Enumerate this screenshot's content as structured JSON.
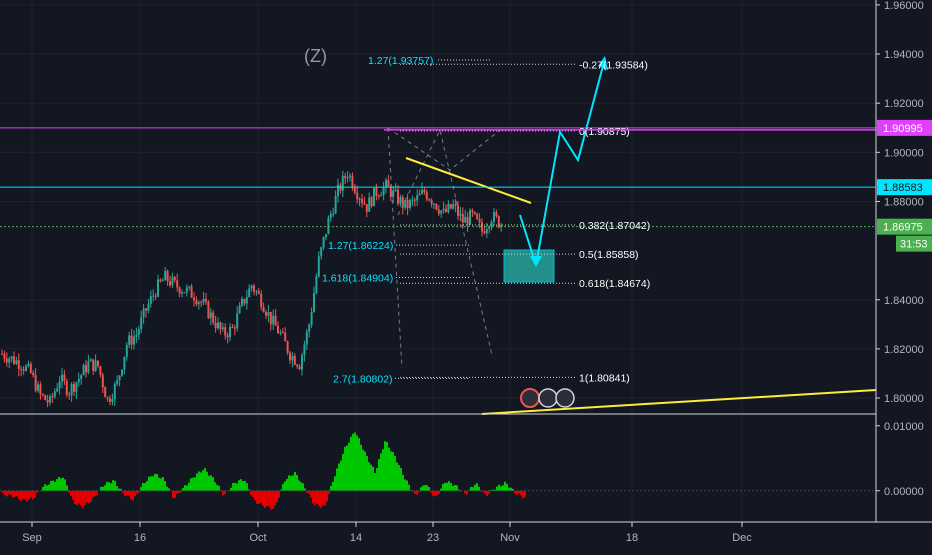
{
  "symbol_mark": "(Z)",
  "colors": {
    "background": "#131722",
    "candle_up": "#26a69a",
    "candle_down": "#ef5350",
    "cyan": "#00e5ff",
    "magenta": "#e040fb",
    "yellow": "#ffeb3b",
    "green_level": "#4caf50",
    "osc_up": "#00c800",
    "osc_down": "#e00000",
    "teal_box": "#26a69a"
  },
  "chart_data": {
    "type": "candlestick",
    "x_ticks": [
      "Sep",
      "16",
      "Oct",
      "14",
      "23",
      "Nov",
      "18",
      "Dec"
    ],
    "y_ticks": [
      "1.96000",
      "1.94000",
      "1.92000",
      "1.90000",
      "1.88000",
      "1.84000",
      "1.82000",
      "1.80000"
    ],
    "ylim": [
      1.7935,
      1.962
    ],
    "price_path": [
      [
        0,
        1.818
      ],
      [
        2,
        1.814
      ],
      [
        3,
        1.81
      ],
      [
        4,
        1.801
      ],
      [
        5,
        1.798
      ],
      [
        6,
        1.808
      ],
      [
        7,
        1.803
      ],
      [
        8,
        1.808
      ],
      [
        9,
        1.814
      ],
      [
        10,
        1.813
      ],
      [
        11,
        1.799
      ],
      [
        12,
        1.806
      ],
      [
        13,
        1.822
      ],
      [
        14,
        1.826
      ],
      [
        15,
        1.836
      ],
      [
        16,
        1.844
      ],
      [
        17,
        1.849
      ],
      [
        18,
        1.846
      ],
      [
        19,
        1.844
      ],
      [
        20,
        1.842
      ],
      [
        21,
        1.838
      ],
      [
        22,
        1.832
      ],
      [
        23,
        1.826
      ],
      [
        24,
        1.828
      ],
      [
        25,
        1.838
      ],
      [
        26,
        1.846
      ],
      [
        27,
        1.84
      ],
      [
        28,
        1.832
      ],
      [
        29,
        1.826
      ],
      [
        30,
        1.818
      ],
      [
        31,
        1.814
      ],
      [
        32,
        1.83
      ],
      [
        33,
        1.856
      ],
      [
        34,
        1.872
      ],
      [
        35,
        1.884
      ],
      [
        36,
        1.892
      ],
      [
        37,
        1.884
      ],
      [
        38,
        1.878
      ],
      [
        39,
        1.884
      ],
      [
        40,
        1.886
      ],
      [
        41,
        1.882
      ],
      [
        42,
        1.878
      ],
      [
        43,
        1.88
      ],
      [
        44,
        1.884
      ],
      [
        45,
        1.88
      ],
      [
        46,
        1.875
      ],
      [
        47,
        1.878
      ],
      [
        48,
        1.872
      ],
      [
        49,
        1.874
      ],
      [
        50,
        1.868
      ],
      [
        51,
        1.874
      ],
      [
        52,
        1.871
      ]
    ],
    "price_day_range": [
      0,
      52
    ],
    "horizontal_levels": [
      {
        "price": 1.90995,
        "label": "1.90995",
        "color": "#e040fb",
        "style": "solid"
      },
      {
        "price": 1.88583,
        "label": "1.88583",
        "color": "#00e5ff",
        "style": "solid"
      },
      {
        "price": 1.86975,
        "label": "1.86975",
        "color": "#4caf50",
        "style": "dotted",
        "countdown": "31:53"
      }
    ],
    "fib_levels": [
      {
        "label": "-0.27(1.93584)",
        "price": 1.93584
      },
      {
        "label": "0(1.90875)",
        "price": 1.90875
      },
      {
        "label": "0.382(1.87042)",
        "price": 1.87042
      },
      {
        "label": "0.5(1.85858)",
        "price": 1.85858
      },
      {
        "label": "0.618(1.84674)",
        "price": 1.84674
      },
      {
        "label": "1(1.80841)",
        "price": 1.80841
      }
    ],
    "extension_labels": [
      {
        "label": "1.27(1.93757)",
        "price": 1.93757
      },
      {
        "label": "1.27(1.86224)",
        "price": 1.86224
      },
      {
        "label": "1.618(1.84904)",
        "price": 1.84904
      },
      {
        "label": "2.7(1.80802)",
        "price": 1.80802
      }
    ],
    "osc_ticks": [
      "0.01000",
      "0.00000"
    ],
    "osc_ylim": [
      -0.0045,
      0.0115
    ],
    "osc_values": [
      -0.0006,
      -0.0008,
      -0.0015,
      -0.0012,
      0.0006,
      0.0015,
      0.0022,
      -0.0018,
      -0.0025,
      -0.0012,
      0.0009,
      0.0016,
      -0.0005,
      -0.0014,
      0.0012,
      0.0026,
      0.0018,
      -0.0012,
      0.0005,
      0.0022,
      0.0034,
      0.0017,
      -0.0008,
      0.0012,
      0.0018,
      -0.0016,
      -0.0024,
      -0.0028,
      0.0016,
      0.0028,
      0.0005,
      -0.0022,
      -0.0025,
      0.0024,
      0.0065,
      0.0092,
      0.0058,
      0.0028,
      0.0077,
      0.0052,
      0.0018,
      -0.0008,
      0.0012,
      -0.0012,
      0.0015,
      0.0008,
      -0.0006,
      0.0012,
      -0.0008,
      0.0005,
      0.0012,
      -0.0004,
      -0.0011
    ]
  }
}
